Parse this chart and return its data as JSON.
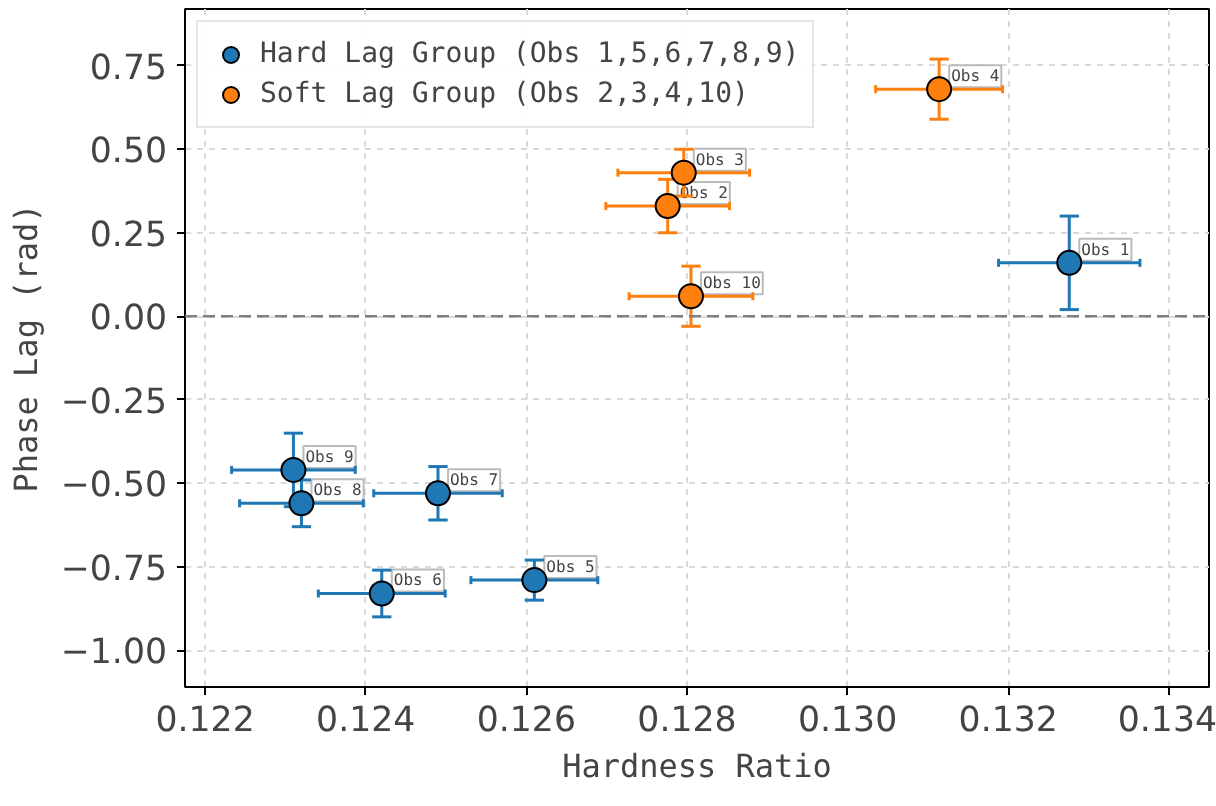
{
  "chart_data": {
    "type": "scatter",
    "xlabel": "Hardness Ratio",
    "ylabel": "Phase Lag (rad)",
    "xlim": [
      0.12175,
      0.1345
    ],
    "ylim": [
      -1.11,
      0.92
    ],
    "xticks": [
      {
        "value": 0.122,
        "label": "0.122"
      },
      {
        "value": 0.124,
        "label": "0.124"
      },
      {
        "value": 0.126,
        "label": "0.126"
      },
      {
        "value": 0.128,
        "label": "0.128"
      },
      {
        "value": 0.13,
        "label": "0.130"
      },
      {
        "value": 0.132,
        "label": "0.132"
      },
      {
        "value": 0.134,
        "label": "0.134"
      }
    ],
    "yticks": [
      {
        "value": -1,
        "label": "−1.00"
      },
      {
        "value": -0.75,
        "label": "−0.75"
      },
      {
        "value": -0.5,
        "label": "−0.50"
      },
      {
        "value": -0.25,
        "label": "−0.25"
      },
      {
        "value": 0,
        "label": "0.00"
      },
      {
        "value": 0.25,
        "label": "0.25"
      },
      {
        "value": 0.5,
        "label": "0.50"
      },
      {
        "value": 0.75,
        "label": "0.75"
      }
    ],
    "grid": true,
    "legend": "top left",
    "marker": "circle",
    "series": [
      {
        "name": "Hard Lag Group (Obs 1,5,6,7,8,9)",
        "color": "#1f77b4",
        "x": [
          0.13276,
          0.1261,
          0.1242,
          0.1249,
          0.1232,
          0.1231
        ],
        "values": [
          0.16,
          -0.79,
          -0.83,
          -0.53,
          -0.56,
          -0.46
        ],
        "errors": [
          0.14,
          0.06,
          0.07,
          0.08,
          0.07,
          0.11
        ],
        "xerrors": [
          0.00088,
          0.00079,
          0.00079,
          0.0008,
          0.00077,
          0.00077
        ]
      },
      {
        "name": "Soft Lag Group (Obs 2,3,4,10)",
        "color": "#ff7f0e",
        "x": [
          0.12776,
          0.12796,
          0.13114,
          0.12805
        ],
        "values": [
          0.33,
          0.43,
          0.68,
          0.06
        ],
        "errors": [
          0.08,
          0.07,
          0.09,
          0.09
        ],
        "xerrors": [
          0.00077,
          0.00082,
          0.00079,
          0.00077
        ]
      }
    ],
    "ref_lines": [
      {
        "axis": "y",
        "value": 0,
        "color": "#808080",
        "line_style": "dashed"
      }
    ],
    "annotations": [
      {
        "text": "Obs 1",
        "x": 0.13276,
        "y": 0.16
      },
      {
        "text": "Obs 5",
        "x": 0.1261,
        "y": -0.79
      },
      {
        "text": "Obs 6",
        "x": 0.1242,
        "y": -0.83
      },
      {
        "text": "Obs 7",
        "x": 0.1249,
        "y": -0.53
      },
      {
        "text": "Obs 8",
        "x": 0.1232,
        "y": -0.56
      },
      {
        "text": "Obs 9",
        "x": 0.1231,
        "y": -0.46
      },
      {
        "text": "Obs 2",
        "x": 0.12776,
        "y": 0.33
      },
      {
        "text": "Obs 3",
        "x": 0.12796,
        "y": 0.43
      },
      {
        "text": "Obs 4",
        "x": 0.13114,
        "y": 0.68
      },
      {
        "text": "Obs 10",
        "x": 0.12805,
        "y": 0.06
      }
    ]
  }
}
